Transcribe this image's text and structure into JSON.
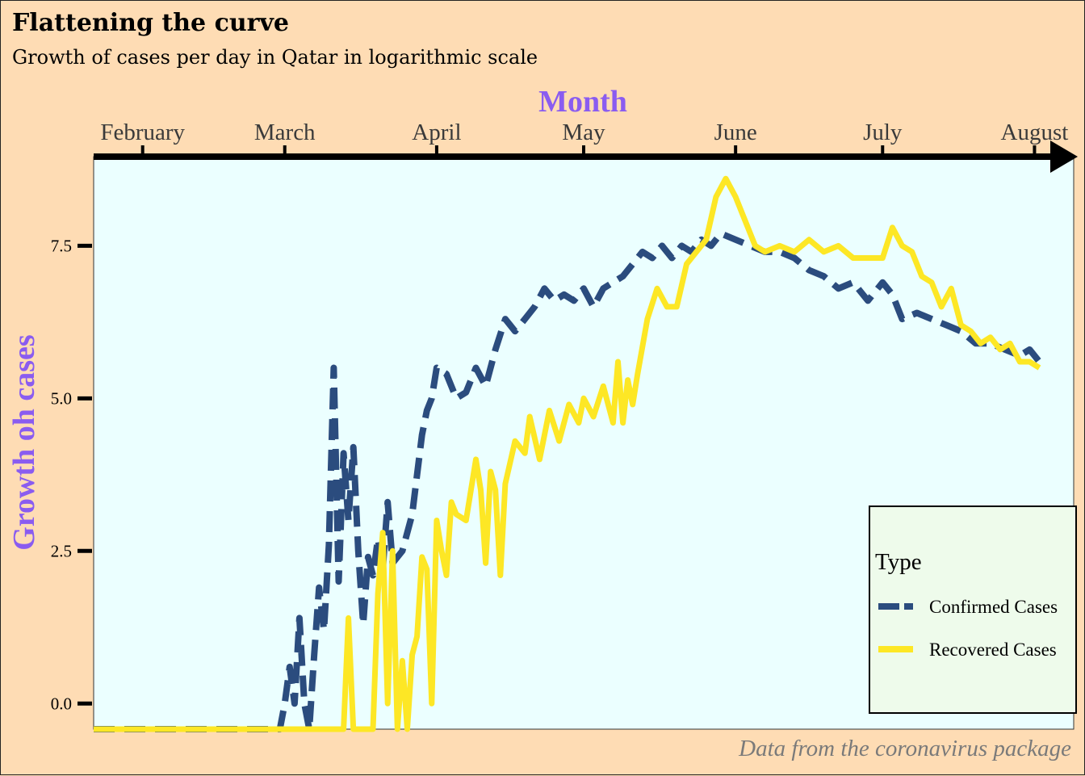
{
  "title": "Flattening the curve",
  "subtitle": "Growth of cases per day in Qatar in logarithmic scale",
  "caption": "Data from the coronavirus package",
  "colors": {
    "background": "#FEDCB4",
    "panel": "#EBFFFF",
    "axis_title": "#8A5CF0",
    "confirmed": "#2B4C7E",
    "recovered": "#FDE725",
    "legend_bg": "#EEFBEB"
  },
  "chart_data": {
    "type": "line",
    "xlabel": "Month",
    "ylabel": "Growth oh cases",
    "x_axis_position": "top",
    "x_ticks": [
      "February",
      "March",
      "April",
      "May",
      "June",
      "July",
      "August"
    ],
    "x_tick_dates": [
      "2020-02-01",
      "2020-03-01",
      "2020-04-01",
      "2020-05-01",
      "2020-06-01",
      "2020-07-01",
      "2020-08-01"
    ],
    "y_ticks": [
      "0.0",
      "2.5",
      "5.0",
      "7.5"
    ],
    "y_tick_values": [
      0,
      2.5,
      5,
      7.5
    ],
    "xlim": [
      "2020-01-22",
      "2020-08-09"
    ],
    "ylim": [
      -0.42,
      8.96
    ],
    "grid": false,
    "legend": {
      "title": "Type",
      "position": "bottom-right"
    },
    "series": [
      {
        "name": "Confirmed Cases",
        "style": "dashed",
        "points": [
          [
            "2020-01-22",
            -0.42
          ],
          [
            "2020-02-29",
            -0.42
          ],
          [
            "2020-03-01",
            0.0
          ],
          [
            "2020-03-02",
            0.6
          ],
          [
            "2020-03-03",
            0.0
          ],
          [
            "2020-03-04",
            1.4
          ],
          [
            "2020-03-05",
            0.0
          ],
          [
            "2020-03-06",
            -0.42
          ],
          [
            "2020-03-07",
            0.8
          ],
          [
            "2020-03-08",
            1.9
          ],
          [
            "2020-03-09",
            1.2
          ],
          [
            "2020-03-10",
            2.6
          ],
          [
            "2020-03-11",
            5.5
          ],
          [
            "2020-03-12",
            2.0
          ],
          [
            "2020-03-13",
            4.1
          ],
          [
            "2020-03-14",
            3.0
          ],
          [
            "2020-03-15",
            4.2
          ],
          [
            "2020-03-16",
            2.5
          ],
          [
            "2020-03-17",
            1.3
          ],
          [
            "2020-03-18",
            2.4
          ],
          [
            "2020-03-19",
            2.1
          ],
          [
            "2020-03-20",
            2.7
          ],
          [
            "2020-03-21",
            2.2
          ],
          [
            "2020-03-22",
            3.3
          ],
          [
            "2020-03-23",
            2.3
          ],
          [
            "2020-03-25",
            2.5
          ],
          [
            "2020-03-27",
            3.1
          ],
          [
            "2020-03-29",
            4.4
          ],
          [
            "2020-03-30",
            4.8
          ],
          [
            "2020-03-31",
            5.0
          ],
          [
            "2020-04-01",
            5.5
          ],
          [
            "2020-04-03",
            5.4
          ],
          [
            "2020-04-05",
            5.0
          ],
          [
            "2020-04-07",
            5.1
          ],
          [
            "2020-04-09",
            5.5
          ],
          [
            "2020-04-11",
            5.2
          ],
          [
            "2020-04-13",
            5.8
          ],
          [
            "2020-04-15",
            6.3
          ],
          [
            "2020-04-17",
            6.1
          ],
          [
            "2020-04-19",
            6.3
          ],
          [
            "2020-04-21",
            6.5
          ],
          [
            "2020-04-23",
            6.8
          ],
          [
            "2020-04-25",
            6.6
          ],
          [
            "2020-04-27",
            6.7
          ],
          [
            "2020-04-29",
            6.6
          ],
          [
            "2020-05-01",
            6.8
          ],
          [
            "2020-05-03",
            6.5
          ],
          [
            "2020-05-05",
            6.8
          ],
          [
            "2020-05-07",
            6.9
          ],
          [
            "2020-05-09",
            7.0
          ],
          [
            "2020-05-11",
            7.2
          ],
          [
            "2020-05-13",
            7.4
          ],
          [
            "2020-05-15",
            7.3
          ],
          [
            "2020-05-17",
            7.5
          ],
          [
            "2020-05-19",
            7.3
          ],
          [
            "2020-05-21",
            7.5
          ],
          [
            "2020-05-23",
            7.4
          ],
          [
            "2020-05-25",
            7.6
          ],
          [
            "2020-05-27",
            7.5
          ],
          [
            "2020-05-29",
            7.7
          ],
          [
            "2020-06-01",
            7.6
          ],
          [
            "2020-06-04",
            7.5
          ],
          [
            "2020-06-07",
            7.4
          ],
          [
            "2020-06-10",
            7.4
          ],
          [
            "2020-06-13",
            7.3
          ],
          [
            "2020-06-16",
            7.1
          ],
          [
            "2020-06-19",
            7.0
          ],
          [
            "2020-06-22",
            6.8
          ],
          [
            "2020-06-25",
            6.9
          ],
          [
            "2020-06-28",
            6.6
          ],
          [
            "2020-07-01",
            6.9
          ],
          [
            "2020-07-03",
            6.7
          ],
          [
            "2020-07-05",
            6.3
          ],
          [
            "2020-07-08",
            6.4
          ],
          [
            "2020-07-11",
            6.3
          ],
          [
            "2020-07-14",
            6.2
          ],
          [
            "2020-07-17",
            6.1
          ],
          [
            "2020-07-20",
            5.9
          ],
          [
            "2020-07-23",
            5.9
          ],
          [
            "2020-07-26",
            5.8
          ],
          [
            "2020-07-29",
            5.7
          ],
          [
            "2020-07-31",
            5.8
          ],
          [
            "2020-08-02",
            5.6
          ]
        ]
      },
      {
        "name": "Recovered Cases",
        "style": "solid",
        "points": [
          [
            "2020-01-22",
            -0.42
          ],
          [
            "2020-03-13",
            -0.42
          ],
          [
            "2020-03-14",
            1.4
          ],
          [
            "2020-03-15",
            -0.42
          ],
          [
            "2020-03-19",
            -0.42
          ],
          [
            "2020-03-20",
            1.8
          ],
          [
            "2020-03-21",
            2.8
          ],
          [
            "2020-03-22",
            0.0
          ],
          [
            "2020-03-23",
            2.5
          ],
          [
            "2020-03-24",
            -0.42
          ],
          [
            "2020-03-25",
            0.7
          ],
          [
            "2020-03-26",
            -0.42
          ],
          [
            "2020-03-27",
            0.8
          ],
          [
            "2020-03-28",
            1.1
          ],
          [
            "2020-03-29",
            2.4
          ],
          [
            "2020-03-30",
            2.2
          ],
          [
            "2020-03-31",
            0.0
          ],
          [
            "2020-04-01",
            3.0
          ],
          [
            "2020-04-02",
            2.5
          ],
          [
            "2020-04-03",
            2.1
          ],
          [
            "2020-04-04",
            3.3
          ],
          [
            "2020-04-05",
            3.1
          ],
          [
            "2020-04-07",
            3.0
          ],
          [
            "2020-04-09",
            4.0
          ],
          [
            "2020-04-10",
            3.5
          ],
          [
            "2020-04-11",
            2.3
          ],
          [
            "2020-04-12",
            3.8
          ],
          [
            "2020-04-13",
            3.5
          ],
          [
            "2020-04-14",
            2.1
          ],
          [
            "2020-04-15",
            3.6
          ],
          [
            "2020-04-17",
            4.3
          ],
          [
            "2020-04-19",
            4.1
          ],
          [
            "2020-04-20",
            4.7
          ],
          [
            "2020-04-22",
            4.0
          ],
          [
            "2020-04-24",
            4.8
          ],
          [
            "2020-04-26",
            4.3
          ],
          [
            "2020-04-28",
            4.9
          ],
          [
            "2020-04-30",
            4.6
          ],
          [
            "2020-05-01",
            5.0
          ],
          [
            "2020-05-03",
            4.7
          ],
          [
            "2020-05-05",
            5.2
          ],
          [
            "2020-05-07",
            4.6
          ],
          [
            "2020-05-08",
            5.6
          ],
          [
            "2020-05-09",
            4.6
          ],
          [
            "2020-05-10",
            5.3
          ],
          [
            "2020-05-11",
            4.9
          ],
          [
            "2020-05-12",
            5.4
          ],
          [
            "2020-05-14",
            6.3
          ],
          [
            "2020-05-16",
            6.8
          ],
          [
            "2020-05-18",
            6.5
          ],
          [
            "2020-05-20",
            6.5
          ],
          [
            "2020-05-22",
            7.2
          ],
          [
            "2020-05-24",
            7.4
          ],
          [
            "2020-05-26",
            7.6
          ],
          [
            "2020-05-28",
            8.3
          ],
          [
            "2020-05-30",
            8.6
          ],
          [
            "2020-06-01",
            8.3
          ],
          [
            "2020-06-03",
            7.9
          ],
          [
            "2020-06-05",
            7.5
          ],
          [
            "2020-06-07",
            7.4
          ],
          [
            "2020-06-10",
            7.5
          ],
          [
            "2020-06-13",
            7.4
          ],
          [
            "2020-06-16",
            7.6
          ],
          [
            "2020-06-19",
            7.4
          ],
          [
            "2020-06-22",
            7.5
          ],
          [
            "2020-06-25",
            7.3
          ],
          [
            "2020-06-28",
            7.3
          ],
          [
            "2020-07-01",
            7.3
          ],
          [
            "2020-07-03",
            7.8
          ],
          [
            "2020-07-05",
            7.5
          ],
          [
            "2020-07-07",
            7.4
          ],
          [
            "2020-07-09",
            7.0
          ],
          [
            "2020-07-11",
            6.9
          ],
          [
            "2020-07-13",
            6.5
          ],
          [
            "2020-07-15",
            6.8
          ],
          [
            "2020-07-17",
            6.2
          ],
          [
            "2020-07-19",
            6.1
          ],
          [
            "2020-07-21",
            5.9
          ],
          [
            "2020-07-23",
            6.0
          ],
          [
            "2020-07-25",
            5.8
          ],
          [
            "2020-07-27",
            5.9
          ],
          [
            "2020-07-29",
            5.6
          ],
          [
            "2020-07-31",
            5.6
          ],
          [
            "2020-08-02",
            5.5
          ]
        ]
      }
    ]
  }
}
